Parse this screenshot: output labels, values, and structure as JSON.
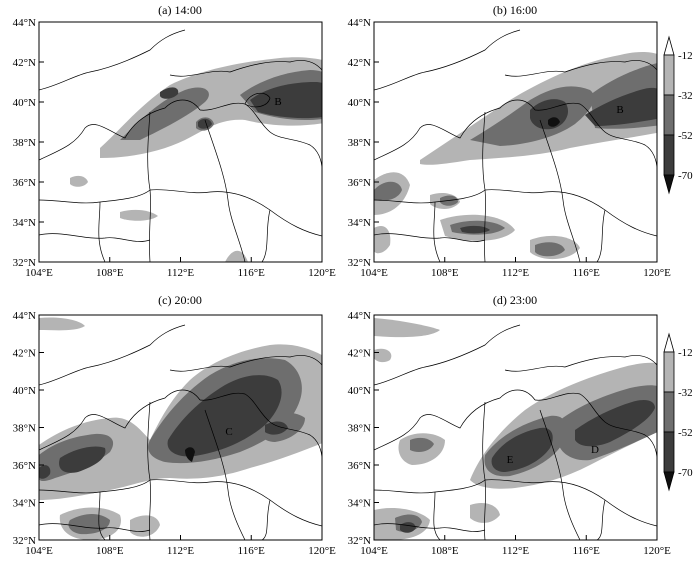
{
  "panels": [
    {
      "title": "(a) 14:00",
      "letters": [
        "B"
      ]
    },
    {
      "title": "(b) 16:00",
      "letters": [
        "B"
      ]
    },
    {
      "title": "(c) 20:00",
      "letters": [
        "C"
      ]
    },
    {
      "title": "(d) 23:00",
      "letters": [
        "E",
        "D"
      ]
    }
  ],
  "axes": {
    "y_ticks": [
      "44°N",
      "42°N",
      "40°N",
      "38°N",
      "36°N",
      "34°N",
      "32°N"
    ],
    "x_ticks": [
      "104°E",
      "108°E",
      "112°E",
      "116°E",
      "120°E"
    ]
  },
  "colorbar": {
    "labels": [
      "-12",
      "-32",
      "-52",
      "-70"
    ],
    "colors": [
      "#ffffff",
      "#b4b4b4",
      "#6e6e6e",
      "#3c3c3c",
      "#101010"
    ]
  }
}
